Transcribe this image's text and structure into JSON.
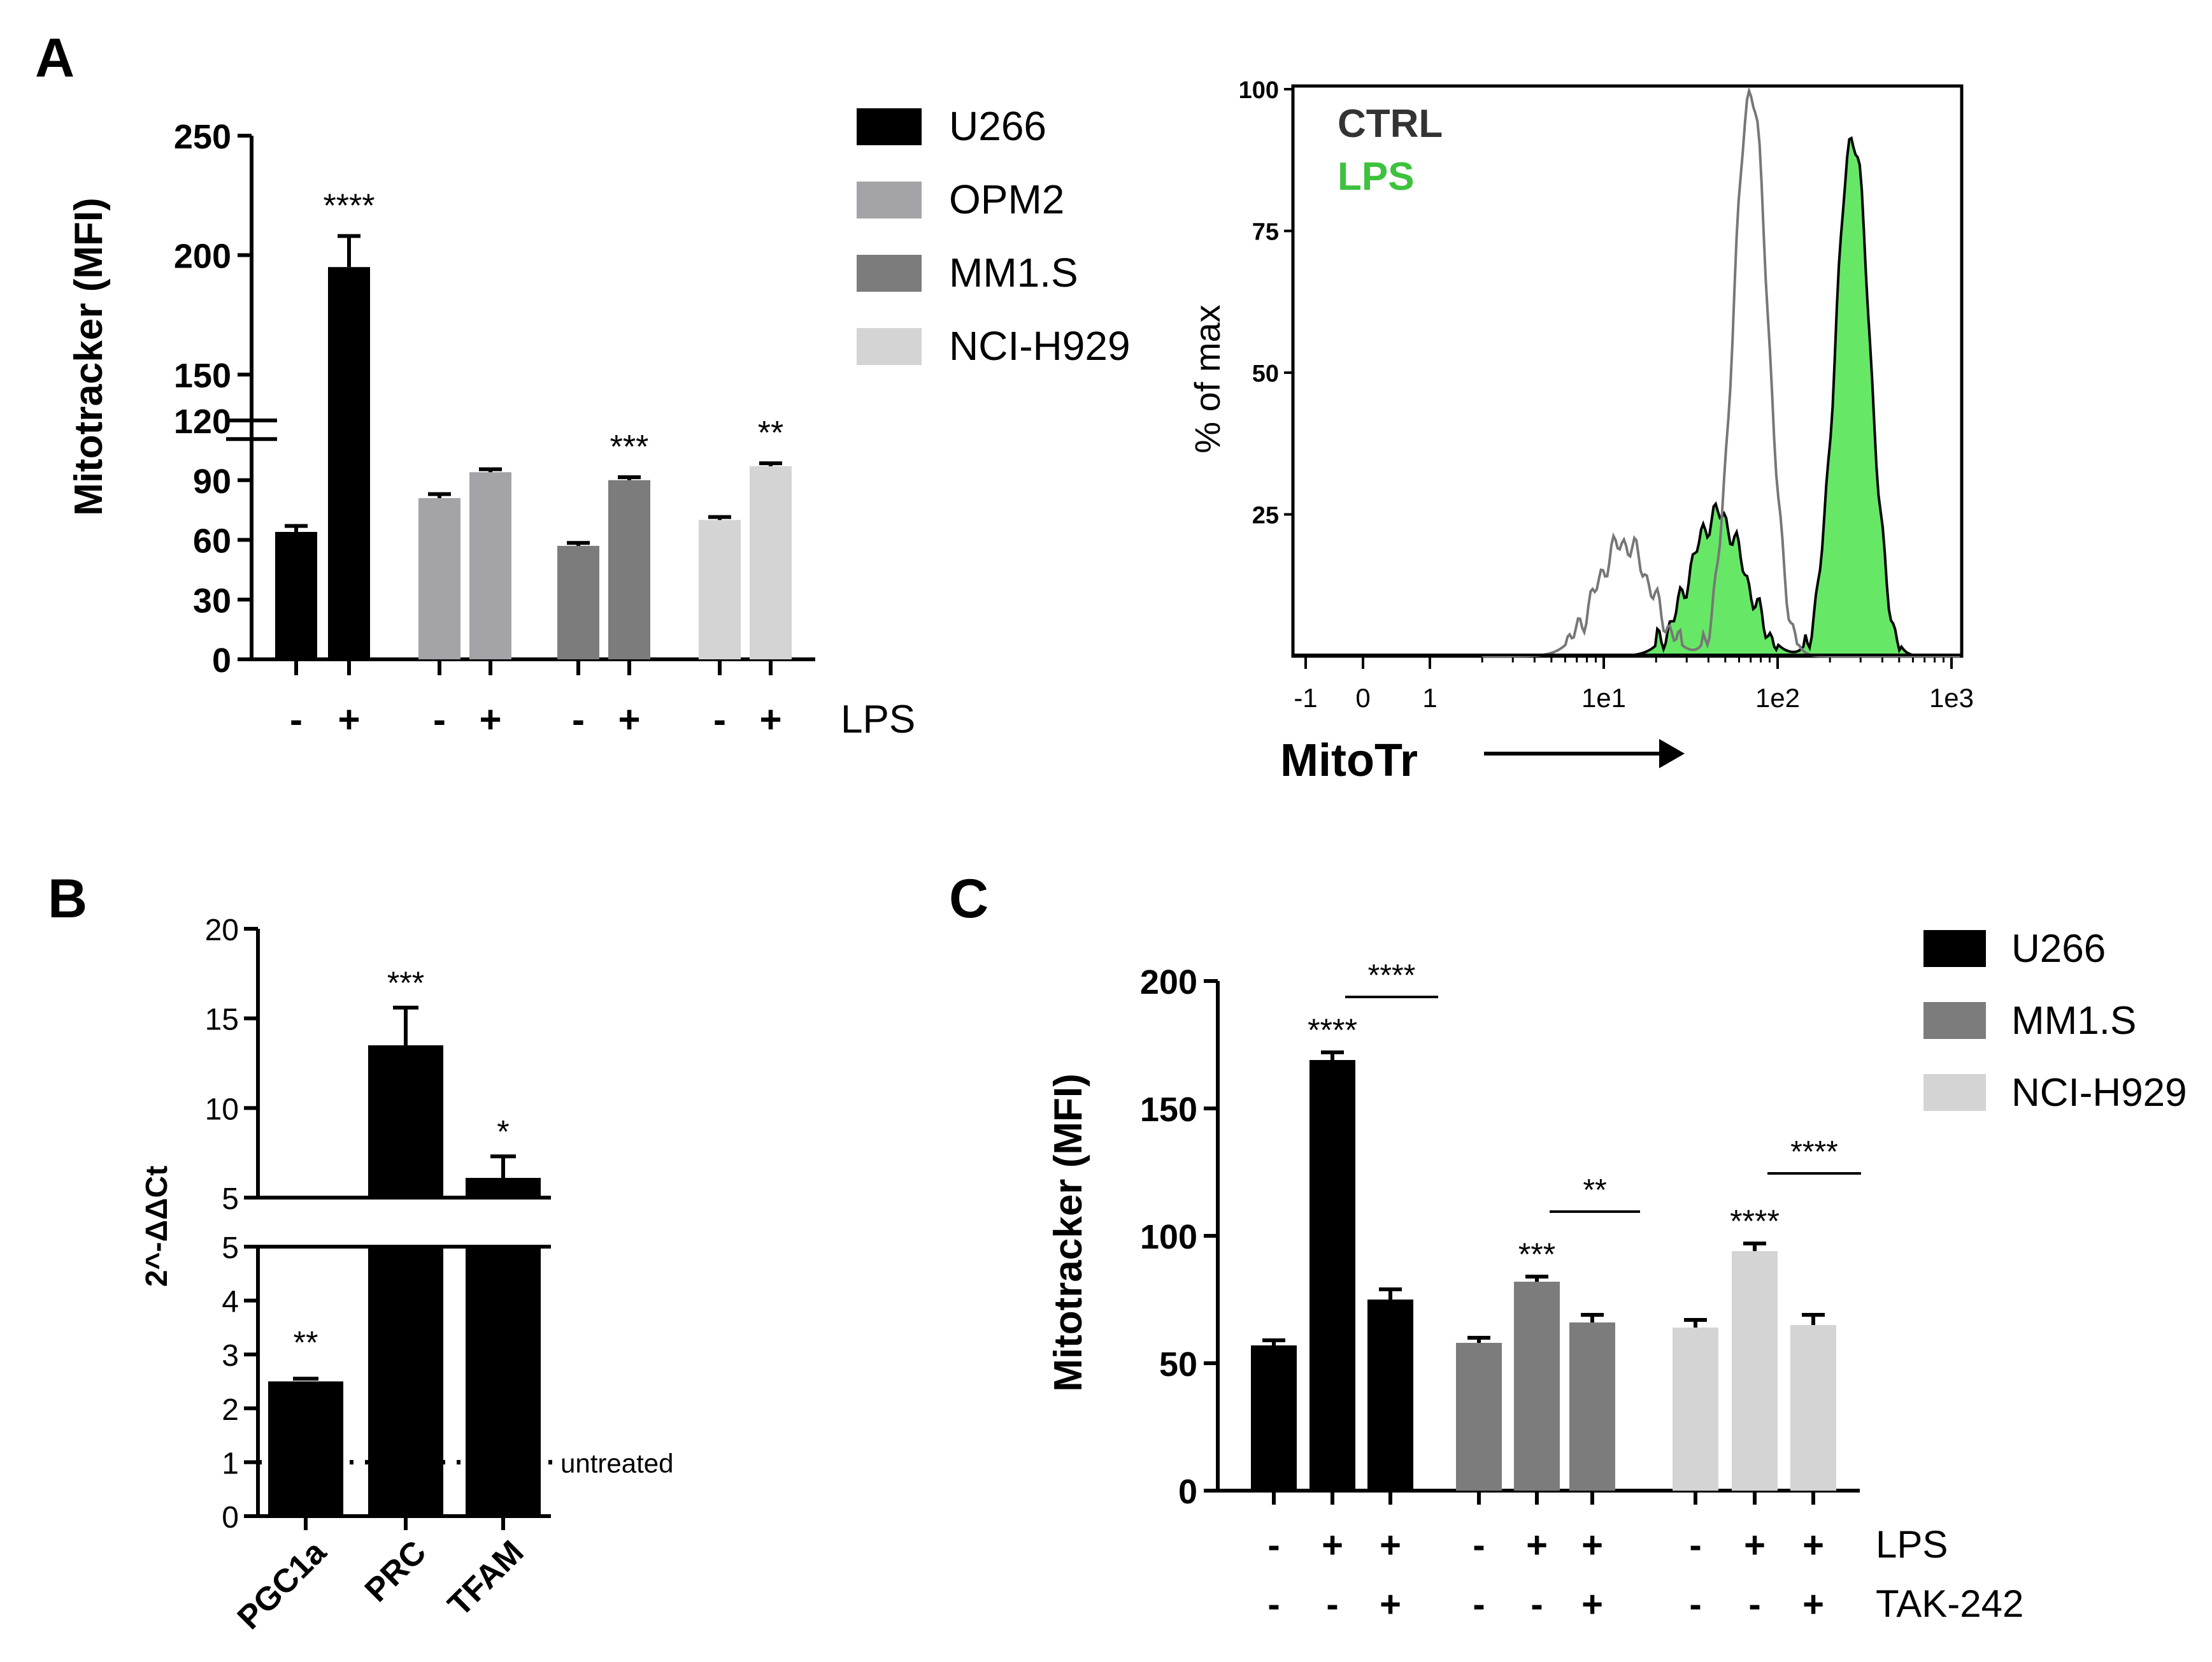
{
  "colors": {
    "U266": "#000000",
    "OPM2": "#a3a3a8",
    "MM1.S": "#7c7c7c",
    "NCI-H929": "#d4d4d4",
    "lps_fill": "#66e866",
    "ctrl_line": "#777777",
    "lps_text": "#3ec23e",
    "ctrl_text": "#333333"
  },
  "panels": {
    "A": {
      "label": "A"
    },
    "B": {
      "label": "B"
    },
    "C": {
      "label": "C"
    }
  },
  "chart_data": [
    {
      "id": "panelA-bar",
      "type": "bar",
      "ylabel": "Mitotracker (MFI)",
      "axis_break": {
        "lower": [
          0,
          120
        ],
        "upper": [
          120,
          250
        ]
      },
      "lower_ticks": [
        "0",
        "30",
        "60",
        "90",
        "120"
      ],
      "upper_ticks": [
        "150",
        "200",
        "250"
      ],
      "groups": [
        "U266",
        "OPM2",
        "MM1.S",
        "NCI-H929"
      ],
      "legend": [
        "U266",
        "OPM2",
        "MM1.S",
        "NCI-H929"
      ],
      "x_row_label": "LPS",
      "bars": [
        {
          "group": "U266",
          "lps": "-",
          "value": 64,
          "err": 3,
          "sig": ""
        },
        {
          "group": "U266",
          "lps": "+",
          "value": 195,
          "err": 13,
          "sig": "****"
        },
        {
          "group": "OPM2",
          "lps": "-",
          "value": 81,
          "err": 2,
          "sig": ""
        },
        {
          "group": "OPM2",
          "lps": "+",
          "value": 94,
          "err": 1.5,
          "sig": ""
        },
        {
          "group": "MM1.S",
          "lps": "-",
          "value": 57,
          "err": 1.5,
          "sig": ""
        },
        {
          "group": "MM1.S",
          "lps": "+",
          "value": 90,
          "err": 1.5,
          "sig": "***"
        },
        {
          "group": "NCI-H929",
          "lps": "-",
          "value": 70,
          "err": 1.5,
          "sig": ""
        },
        {
          "group": "NCI-H929",
          "lps": "+",
          "value": 97,
          "err": 1.5,
          "sig": "**"
        }
      ]
    },
    {
      "id": "panelA-histogram",
      "type": "area",
      "ylabel": "% of max",
      "xlabel": "MitoTr",
      "yticks": [
        "100",
        "75",
        "50",
        "25"
      ],
      "xticks": [
        "-1",
        "0",
        "1",
        "1e1",
        "1e2",
        "1e3"
      ],
      "ylim": [
        0,
        100
      ],
      "series": [
        {
          "name": "CTRL",
          "shape": "bimodal",
          "minor_peak": {
            "x": 13,
            "y": 20
          },
          "major_peak": {
            "x": 70,
            "y": 100
          }
        },
        {
          "name": "LPS",
          "shape": "bimodal",
          "minor_peak": {
            "x": 45,
            "y": 25
          },
          "major_peak": {
            "x": 270,
            "y": 92
          }
        }
      ]
    },
    {
      "id": "panelB-bar",
      "type": "bar",
      "ylabel": "2^-ΔΔCt",
      "axis_break": {
        "lower": [
          0,
          5
        ],
        "upper": [
          5,
          20
        ]
      },
      "lower_ticks": [
        "0",
        "1",
        "2",
        "3",
        "4",
        "5"
      ],
      "upper_ticks": [
        "5",
        "10",
        "15",
        "20"
      ],
      "categories": [
        "PGC1a",
        "PRC",
        "TFAM"
      ],
      "values": [
        2.5,
        13.5,
        6.1
      ],
      "errors": [
        0.05,
        2.1,
        1.2
      ],
      "sig": [
        "**",
        "***",
        "*"
      ],
      "reference": {
        "value": 1,
        "label": "untreated"
      }
    },
    {
      "id": "panelC-bar",
      "type": "bar",
      "ylabel": "Mitotracker (MFI)",
      "ylim": [
        0,
        200
      ],
      "yticks": [
        "0",
        "50",
        "100",
        "150",
        "200"
      ],
      "legend": [
        "U266",
        "MM1.S",
        "NCI-H929"
      ],
      "row_labels": [
        "LPS",
        "TAK-242"
      ],
      "bars": [
        {
          "group": "U266",
          "lps": "-",
          "tak": "-",
          "value": 57,
          "err": 2,
          "sig": ""
        },
        {
          "group": "U266",
          "lps": "+",
          "tak": "-",
          "value": 169,
          "err": 3,
          "sig": "****"
        },
        {
          "group": "U266",
          "lps": "+",
          "tak": "+",
          "value": 75,
          "err": 4,
          "sig": ""
        },
        {
          "group": "MM1.S",
          "lps": "-",
          "tak": "-",
          "value": 58,
          "err": 2,
          "sig": ""
        },
        {
          "group": "MM1.S",
          "lps": "+",
          "tak": "-",
          "value": 82,
          "err": 2,
          "sig": "***"
        },
        {
          "group": "MM1.S",
          "lps": "+",
          "tak": "+",
          "value": 66,
          "err": 3,
          "sig": ""
        },
        {
          "group": "NCI-H929",
          "lps": "-",
          "tak": "-",
          "value": 64,
          "err": 3,
          "sig": ""
        },
        {
          "group": "NCI-H929",
          "lps": "+",
          "tak": "-",
          "value": 94,
          "err": 3,
          "sig": "****"
        },
        {
          "group": "NCI-H929",
          "lps": "+",
          "tak": "+",
          "value": 65,
          "err": 4,
          "sig": ""
        }
      ],
      "comparisons": [
        {
          "from": 1,
          "to": 2,
          "sig": "****"
        },
        {
          "from": 4,
          "to": 5,
          "sig": "**"
        },
        {
          "from": 7,
          "to": 8,
          "sig": "****"
        }
      ]
    }
  ]
}
